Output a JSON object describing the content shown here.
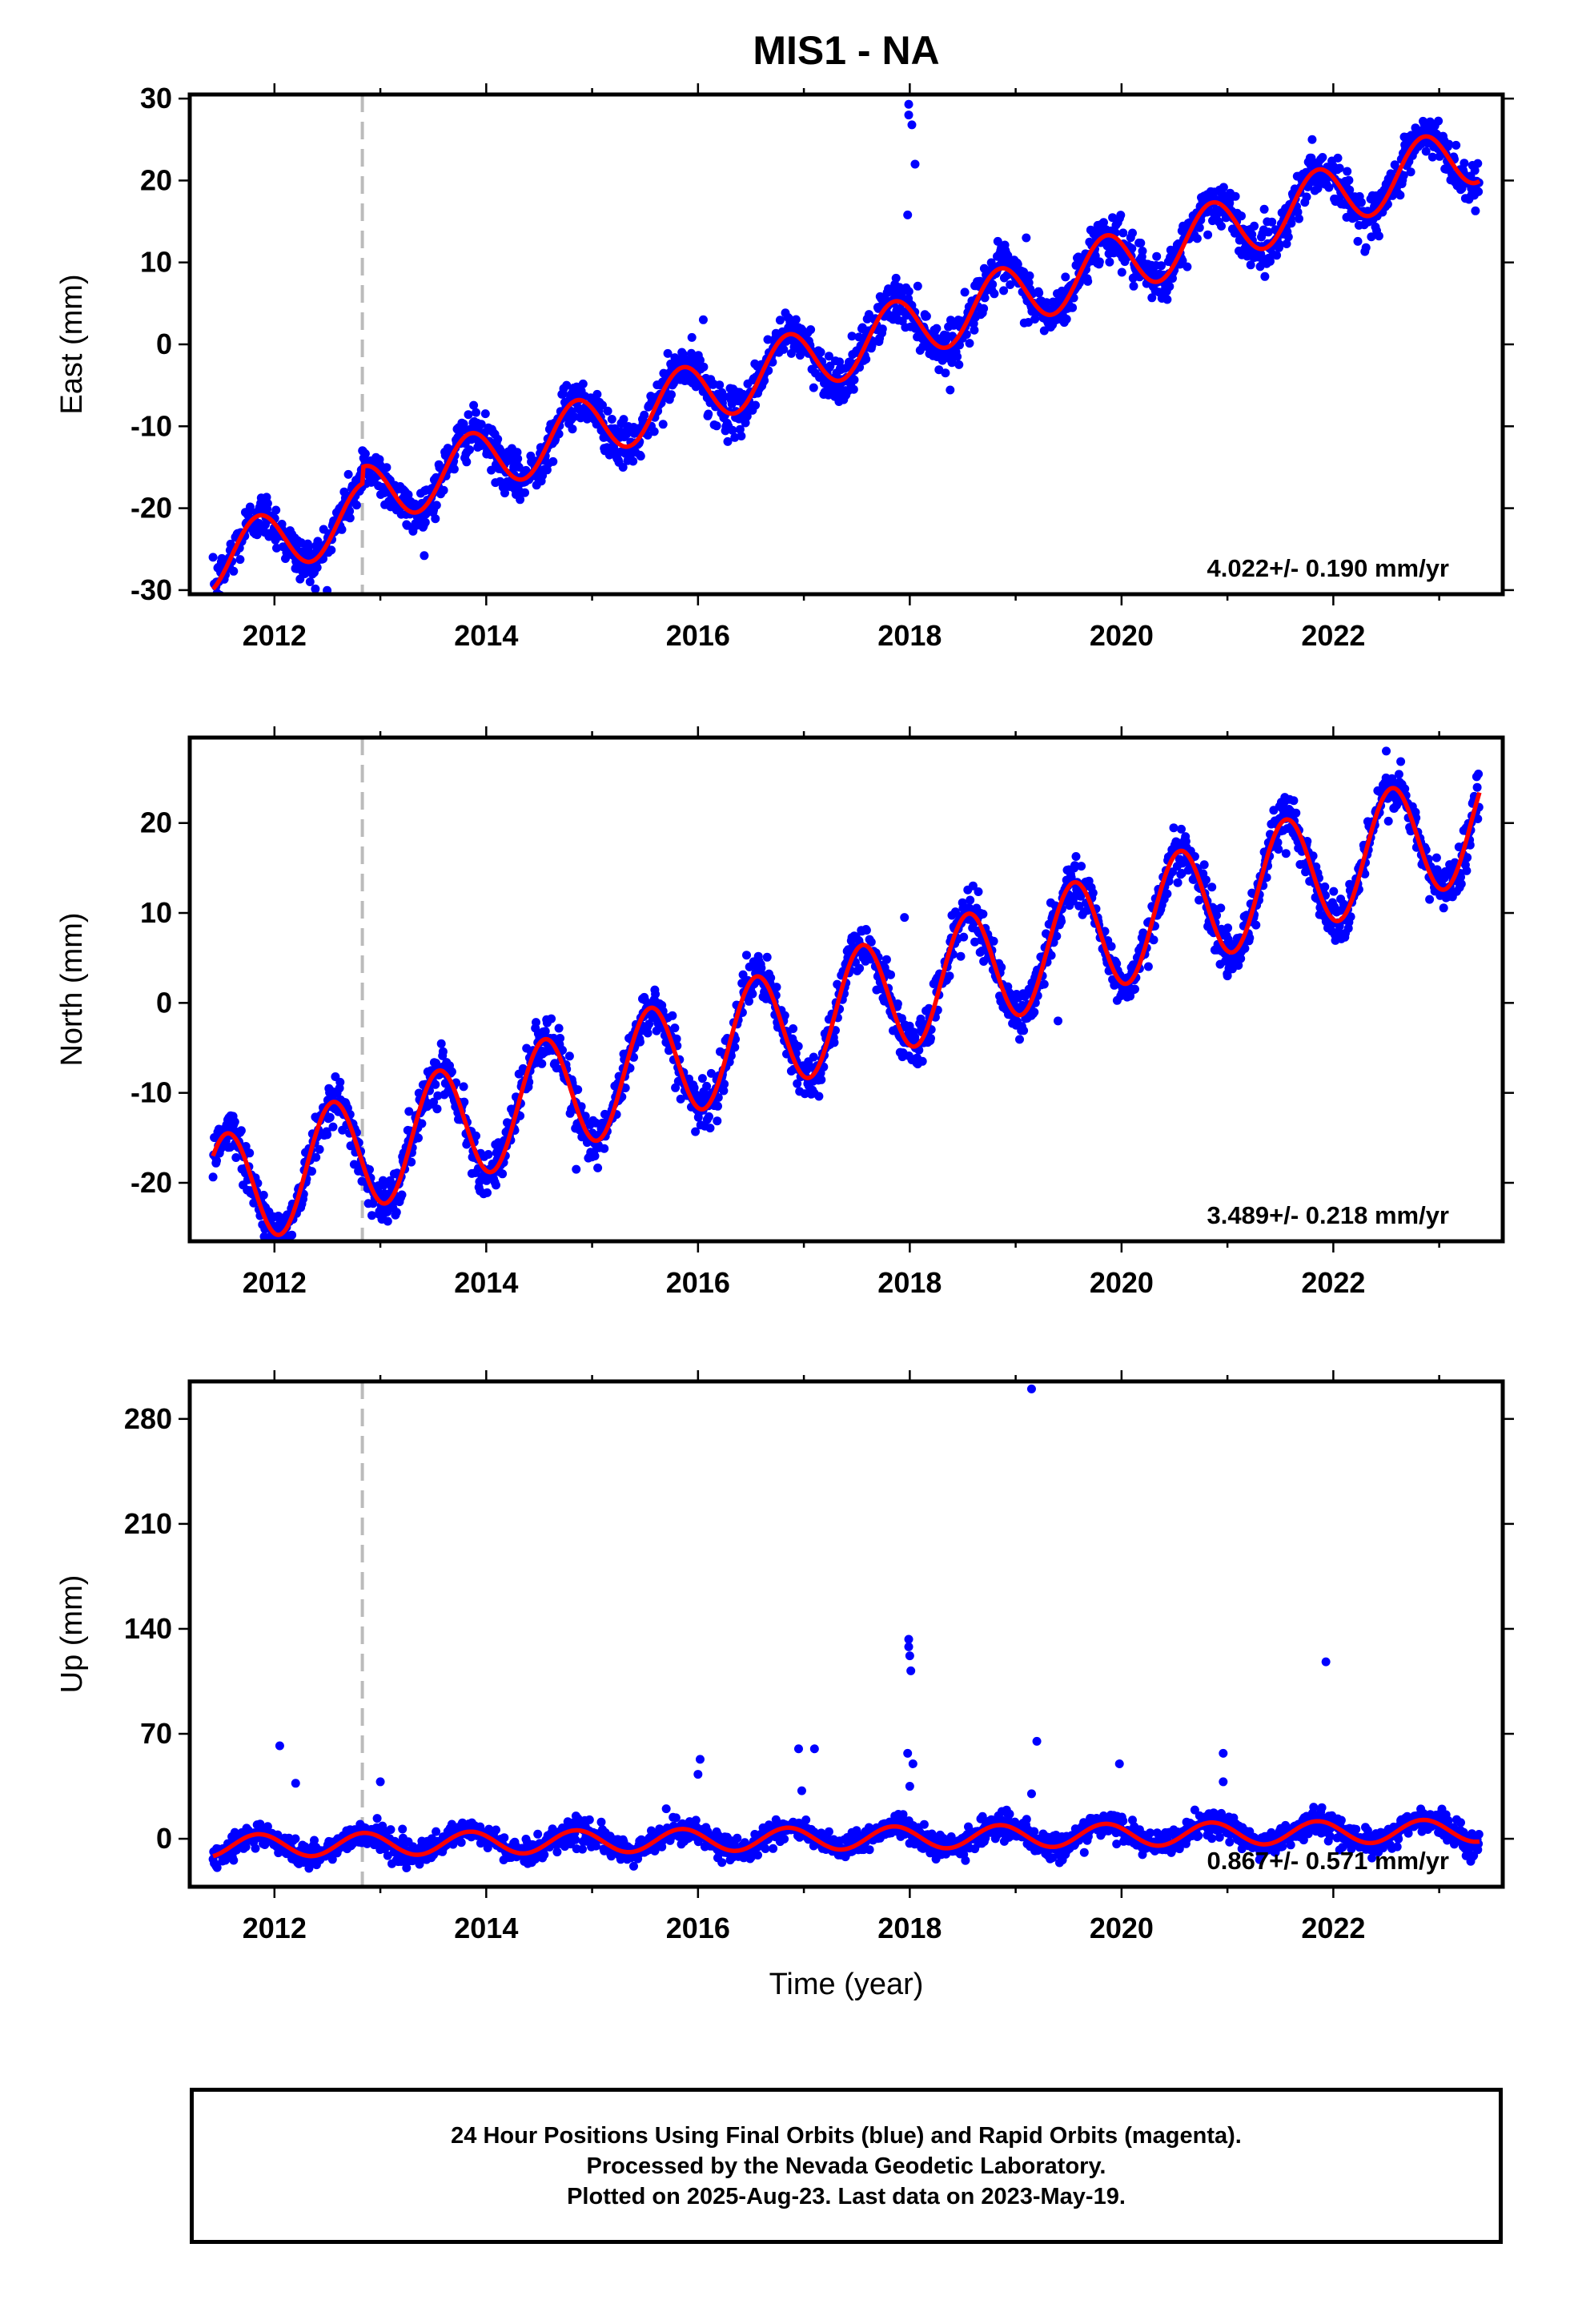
{
  "title": "MIS1 - NA",
  "colors": {
    "data": "#0000ff",
    "fit": "#ff0000",
    "event_line": "#bbbbbb",
    "frame": "#000000"
  },
  "x_axis": {
    "label": "Time (year)",
    "range": [
      2011.2,
      2023.6
    ],
    "ticks": [
      2012,
      2014,
      2016,
      2018,
      2020,
      2022
    ]
  },
  "chart_data": [
    {
      "type": "scatter",
      "component": "East",
      "ylabel": "East (mm)",
      "ylim": [
        -30.5,
        30.5
      ],
      "yticks": [
        -30,
        -20,
        -10,
        0,
        10,
        20,
        30
      ],
      "rate_label": "4.022+/- 0.190 mm/yr",
      "event_line_x": 2012.83,
      "model": {
        "trend_mm_per_yr": 4.022,
        "value_at_2017": -2.0,
        "annual_amplitude": 3.8,
        "peak_month_fraction": 0.85,
        "offset_at_event": 2.0
      },
      "scatter_std_mm": 1.4,
      "outliers": [
        {
          "x": 2017.99,
          "y": 29.3
        },
        {
          "x": 2017.99,
          "y": 28.0
        },
        {
          "x": 2018.02,
          "y": 26.8
        },
        {
          "x": 2018.05,
          "y": 22.0
        },
        {
          "x": 2017.98,
          "y": 15.8
        },
        {
          "x": 2021.8,
          "y": 25.0
        },
        {
          "x": 2016.05,
          "y": 3.0
        },
        {
          "x": 2019.1,
          "y": 13.0
        }
      ],
      "fit_series": "red seasonal model",
      "data_series": "daily positions (blue)"
    },
    {
      "type": "scatter",
      "component": "North",
      "ylabel": "North (mm)",
      "ylim": [
        -26.5,
        29.5
      ],
      "yticks": [
        -20,
        -10,
        0,
        10,
        20
      ],
      "rate_label": "3.489+/- 0.218 mm/yr",
      "event_line_x": 2012.83,
      "model": {
        "trend_mm_per_yr": 3.489,
        "value_at_2017": -2.0,
        "annual_amplitude": 6.5,
        "peak_month_fraction": 0.55,
        "offset_at_event": 0.0
      },
      "scatter_std_mm": 1.3,
      "outliers": [
        {
          "x": 2022.5,
          "y": 28.0
        },
        {
          "x": 2014.85,
          "y": -18.5
        },
        {
          "x": 2017.95,
          "y": 9.5
        },
        {
          "x": 2021.0,
          "y": 3.0
        },
        {
          "x": 2019.4,
          "y": -2.0
        }
      ],
      "fit_series": "red seasonal model",
      "data_series": "daily positions (blue)"
    },
    {
      "type": "scatter",
      "component": "Up",
      "ylabel": "Up (mm)",
      "ylim": [
        -32,
        305
      ],
      "yticks": [
        0,
        70,
        140,
        210,
        280
      ],
      "rate_label": "0.867+/- 0.571 mm/yr",
      "event_line_x": 2012.83,
      "model": {
        "trend_mm_per_yr": 0.867,
        "value_at_2017": 0.0,
        "annual_amplitude": 7.5,
        "peak_month_fraction": 0.85,
        "offset_at_event": 0.0
      },
      "scatter_std_mm": 4.0,
      "outliers": [
        {
          "x": 2019.15,
          "y": 300
        },
        {
          "x": 2017.99,
          "y": 133
        },
        {
          "x": 2017.99,
          "y": 128
        },
        {
          "x": 2018.0,
          "y": 122
        },
        {
          "x": 2018.01,
          "y": 112
        },
        {
          "x": 2021.93,
          "y": 118
        },
        {
          "x": 2012.05,
          "y": 62
        },
        {
          "x": 2012.2,
          "y": 37
        },
        {
          "x": 2013.0,
          "y": 38
        },
        {
          "x": 2016.02,
          "y": 53
        },
        {
          "x": 2016.0,
          "y": 43
        },
        {
          "x": 2016.95,
          "y": 60
        },
        {
          "x": 2016.98,
          "y": 32
        },
        {
          "x": 2017.1,
          "y": 60
        },
        {
          "x": 2017.98,
          "y": 57
        },
        {
          "x": 2018.03,
          "y": 50
        },
        {
          "x": 2018.0,
          "y": 35
        },
        {
          "x": 2019.2,
          "y": 65
        },
        {
          "x": 2019.15,
          "y": 30
        },
        {
          "x": 2019.98,
          "y": 50
        },
        {
          "x": 2020.96,
          "y": 57
        },
        {
          "x": 2020.96,
          "y": 38
        },
        {
          "x": 2015.7,
          "y": 20
        }
      ],
      "fit_series": "red seasonal model",
      "data_series": "daily positions (blue)"
    }
  ],
  "caption": {
    "line1": "24 Hour Positions Using Final Orbits (blue) and Rapid Orbits (magenta).",
    "line2": "Processed by the Nevada Geodetic Laboratory.",
    "line3": "Plotted on 2025-Aug-23. Last data on 2023-May-19."
  }
}
